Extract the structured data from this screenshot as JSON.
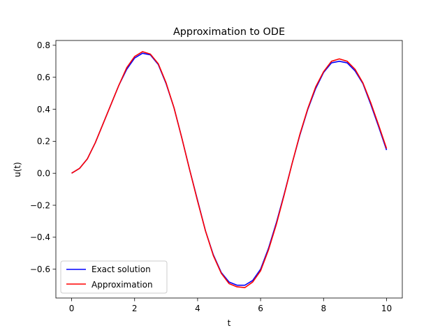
{
  "chart_data": {
    "type": "line",
    "title": "Approximation to ODE",
    "xlabel": "t",
    "ylabel": "u(t)",
    "xlim": [
      -0.5,
      10.5
    ],
    "ylim": [
      -0.78,
      0.83
    ],
    "xticks": [
      0,
      2,
      4,
      6,
      8,
      10
    ],
    "xtick_labels": [
      "0",
      "2",
      "4",
      "6",
      "8",
      "10"
    ],
    "yticks": [
      -0.6,
      -0.4,
      -0.2,
      0.0,
      0.2,
      0.4,
      0.6,
      0.8
    ],
    "ytick_labels": [
      "−0.6",
      "−0.4",
      "−0.2",
      "0.0",
      "0.2",
      "0.4",
      "0.6",
      "0.8"
    ],
    "grid": false,
    "legend_position": "lower-left",
    "x": [
      0,
      0.25,
      0.5,
      0.75,
      1,
      1.25,
      1.5,
      1.75,
      2,
      2.25,
      2.5,
      2.75,
      3,
      3.25,
      3.5,
      3.75,
      4,
      4.25,
      4.5,
      4.75,
      5,
      5.25,
      5.5,
      5.75,
      6,
      6.25,
      6.5,
      6.75,
      7,
      7.25,
      7.5,
      7.75,
      8,
      8.25,
      8.5,
      8.75,
      9,
      9.25,
      9.5,
      9.75,
      10
    ],
    "series": [
      {
        "name": "Exact solution",
        "color": "#0000ff",
        "values": [
          0.0,
          0.03,
          0.09,
          0.19,
          0.31,
          0.43,
          0.55,
          0.65,
          0.72,
          0.75,
          0.74,
          0.68,
          0.56,
          0.41,
          0.22,
          0.02,
          -0.17,
          -0.36,
          -0.51,
          -0.62,
          -0.68,
          -0.7,
          -0.7,
          -0.67,
          -0.6,
          -0.47,
          -0.31,
          -0.13,
          0.06,
          0.24,
          0.4,
          0.53,
          0.63,
          0.69,
          0.7,
          0.69,
          0.64,
          0.56,
          0.43,
          0.29,
          0.145
        ]
      },
      {
        "name": "Approximation",
        "color": "#ff0000",
        "values": [
          0.0,
          0.03,
          0.09,
          0.19,
          0.31,
          0.43,
          0.55,
          0.66,
          0.73,
          0.76,
          0.745,
          0.685,
          0.565,
          0.41,
          0.22,
          0.02,
          -0.175,
          -0.36,
          -0.515,
          -0.625,
          -0.69,
          -0.71,
          -0.715,
          -0.68,
          -0.61,
          -0.48,
          -0.32,
          -0.135,
          0.06,
          0.245,
          0.405,
          0.54,
          0.635,
          0.7,
          0.715,
          0.7,
          0.65,
          0.565,
          0.44,
          0.3,
          0.155
        ]
      }
    ]
  }
}
